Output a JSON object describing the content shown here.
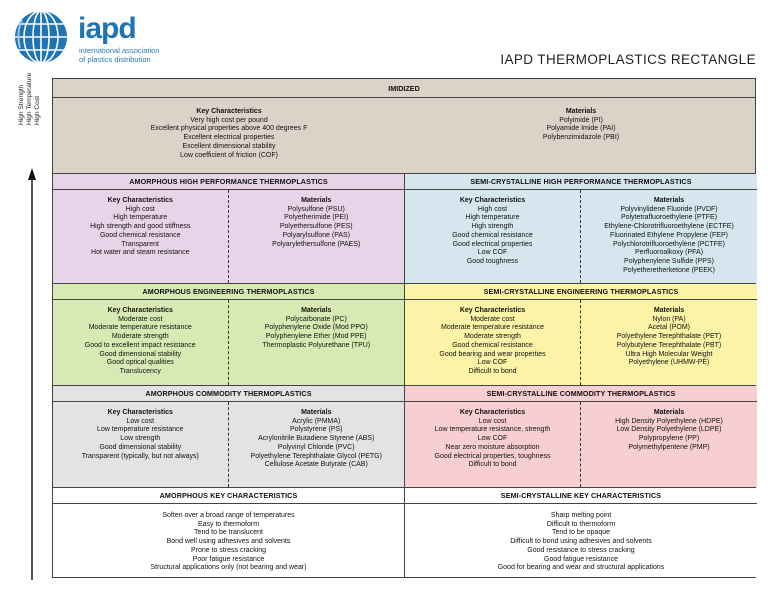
{
  "logo": {
    "wordmark": "iapd",
    "subtitle_lines": [
      "international association",
      "of plastics distribution"
    ],
    "brand_color": "#1f74b6"
  },
  "title": "IAPD THERMOPLASTICS RECTANGLE",
  "axis_labels": [
    "High Strength",
    "High Temperature",
    "High Cost"
  ],
  "colors": {
    "imidized": "#dcd3c8",
    "amorphous_hp": "#e8d4e8",
    "semi_hp": "#d6e6ee",
    "amorphous_eng": "#d8eab4",
    "semi_eng": "#fbf3a6",
    "amorphous_com": "#e3e3e3",
    "semi_com": "#f7cfd2",
    "key_rows": "#ffffff"
  },
  "imidized": {
    "title": "IMIDIZED",
    "key_heading": "Key Characteristics",
    "key": [
      "Very high cost per pound",
      "Excellent physical properties above 400 degrees F",
      "Excellent electrical properties",
      "Excellent dimensional stability",
      "Low coefficient of friction (COF)"
    ],
    "mat_heading": "Materials",
    "materials": [
      "Polyimide (PI)",
      "Polyamide Imide (PAI)",
      "Polybenzimidazole (PBI)"
    ]
  },
  "amorphous_hp": {
    "title": "AMORPHOUS HIGH PERFORMANCE THERMOPLASTICS",
    "key_heading": "Key Characteristics",
    "key": [
      "High cost",
      "High temperature",
      "High strength and good stiffness",
      "Good chemical resistance",
      "Transparent",
      "Hot water and steam resistance"
    ],
    "mat_heading": "Materials",
    "materials": [
      "Polysulfone (PSU)",
      "Polyetherimide (PEI)",
      "Polyethersulfone (PES)",
      "Polyarylsulfone (PAS)",
      "Polyarylethersulfone (PAES)"
    ]
  },
  "semi_hp": {
    "title": "SEMI-CRYSTALLINE HIGH PERFORMANCE THERMOPLASTICS",
    "key_heading": "Key Characteristics",
    "key": [
      "High cost",
      "High temperature",
      "High strength",
      "Good chemical resistance",
      "Good electrical properties",
      "Low COF",
      "Good toughness"
    ],
    "mat_heading": "Materials",
    "materials": [
      "Polyvinylidene Fluoride (PVDF)",
      "Polytetrafluoroethylene (PTFE)",
      "Ethylene-Chlorotrifluoroethylene (ECTFE)",
      "Fluorinated Ethylene Propylene (FEP)",
      "Polychlorotrifluoroethylene (PCTFE)",
      "Perfluoroalkoxy (PFA)",
      "Polyphenylene Sulfide (PPS)",
      "Polyetheretherketone (PEEK)"
    ]
  },
  "amorphous_eng": {
    "title": "AMORPHOUS ENGINEERING THERMOPLASTICS",
    "key_heading": "Key Characteristics",
    "key": [
      "Moderate cost",
      "Moderate temperature resistance",
      "Moderate strength",
      "Good to excellent impact resistance",
      "Good dimensional stability",
      "Good optical qualities",
      "Translucency"
    ],
    "mat_heading": "Materials",
    "materials": [
      "Polycarbonate (PC)",
      "Polyphenylene Oxide (Mod PPO)",
      "Polyphenylene Ether (Mod PPE)",
      "Thermoplastic Polyurethane (TPU)"
    ]
  },
  "semi_eng": {
    "title": "SEMI-CRYSTALLINE ENGINEERING THERMOPLASTICS",
    "key_heading": "Key Characteristics",
    "key": [
      "Moderate cost",
      "Moderate temperature resistance",
      "Moderate strength",
      "Good chemical resistance",
      "Good bearing and wear properties",
      "Low COF",
      "Difficult to bond"
    ],
    "mat_heading": "Materials",
    "materials": [
      "Nylon (PA)",
      "Acetal (POM)",
      "Polyethylene Terephthalate (PET)",
      "Polybutylene Terephthalate (PBT)",
      "Ultra High Molecular Weight",
      "Polyethylene (UHMW-PE)"
    ]
  },
  "amorphous_com": {
    "title": "AMORPHOUS COMMODITY THERMOPLASTICS",
    "key_heading": "Key Characteristics",
    "key": [
      "Low cost",
      "Low temperature resistance",
      "Low strength",
      "Good dimensional stability",
      "Transparent (typically, but not always)"
    ],
    "mat_heading": "Materials",
    "materials": [
      "Acrylic (PMMA)",
      "Polystyrene (PS)",
      "Acrylonitrile Butadiene Styrene (ABS)",
      "Polyvinyl Chloride (PVC)",
      "Polyethylene Terephthalate Glycol (PETG)",
      "Cellulose Acetate Butyrate (CAB)"
    ]
  },
  "semi_com": {
    "title": "SEMI-CRYSTALLINE COMMODITY THERMOPLASTICS",
    "key_heading": "Key Characteristics",
    "key": [
      "Low cost",
      "Low temperature resistance, strength",
      "Low COF",
      "Near zero moisture absorption",
      "Good electrical properties, toughness",
      "Difficult to bond"
    ],
    "mat_heading": "Materials",
    "materials": [
      "High Density Polyethylene (HDPE)",
      "Low Density Polyethylene (LDPE)",
      "Polypropylene (PP)",
      "Polymethylpentene (PMP)"
    ]
  },
  "amorphous_key": {
    "title": "AMORPHOUS KEY CHARACTERISTICS",
    "items": [
      "Soften over a broad range of temperatures",
      "Easy to thermoform",
      "Tend to be translucent",
      "Bond well using adhesives and solvents",
      "Prone to stress cracking",
      "Poor fatigue resistance",
      "Structural applications only (not bearing and wear)"
    ]
  },
  "semi_key": {
    "title": "SEMI-CRYSTALLINE KEY CHARACTERISTICS",
    "items": [
      "Sharp melting point",
      "Difficult to thermoform",
      "Tend to be opaque",
      "Difficult to bond using adhesives and solvents",
      "Good resistance to stress cracking",
      "Good fatigue resistance",
      "Good for bearing and wear and structural applications"
    ]
  }
}
